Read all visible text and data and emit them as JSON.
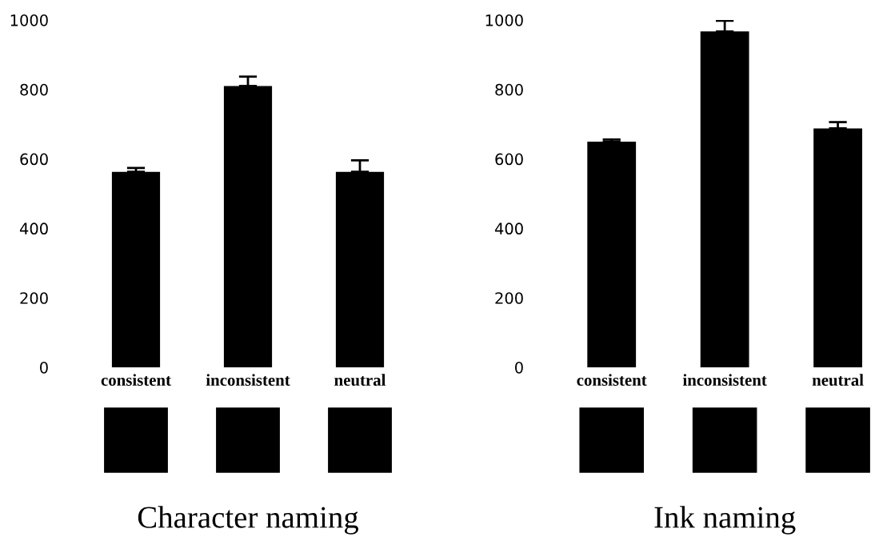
{
  "chart_data": [
    {
      "type": "bar",
      "title": "Character naming",
      "categories": [
        "consistent",
        "inconsistent",
        "neutral"
      ],
      "values": [
        563,
        810,
        563
      ],
      "errors": [
        11,
        27,
        33
      ],
      "color": "#000000",
      "ylim": [
        0,
        1000
      ],
      "yticks": [
        0,
        200,
        400,
        600,
        800,
        1000
      ],
      "grid": false,
      "legend": false
    },
    {
      "type": "bar",
      "title": "Ink naming",
      "categories": [
        "consistent",
        "inconsistent",
        "neutral"
      ],
      "values": [
        650,
        967,
        688
      ],
      "errors": [
        6,
        31,
        18
      ],
      "color": "#000000",
      "ylim": [
        0,
        1000
      ],
      "yticks": [
        0,
        200,
        400,
        600,
        800,
        1000
      ],
      "grid": false,
      "legend": false
    }
  ]
}
